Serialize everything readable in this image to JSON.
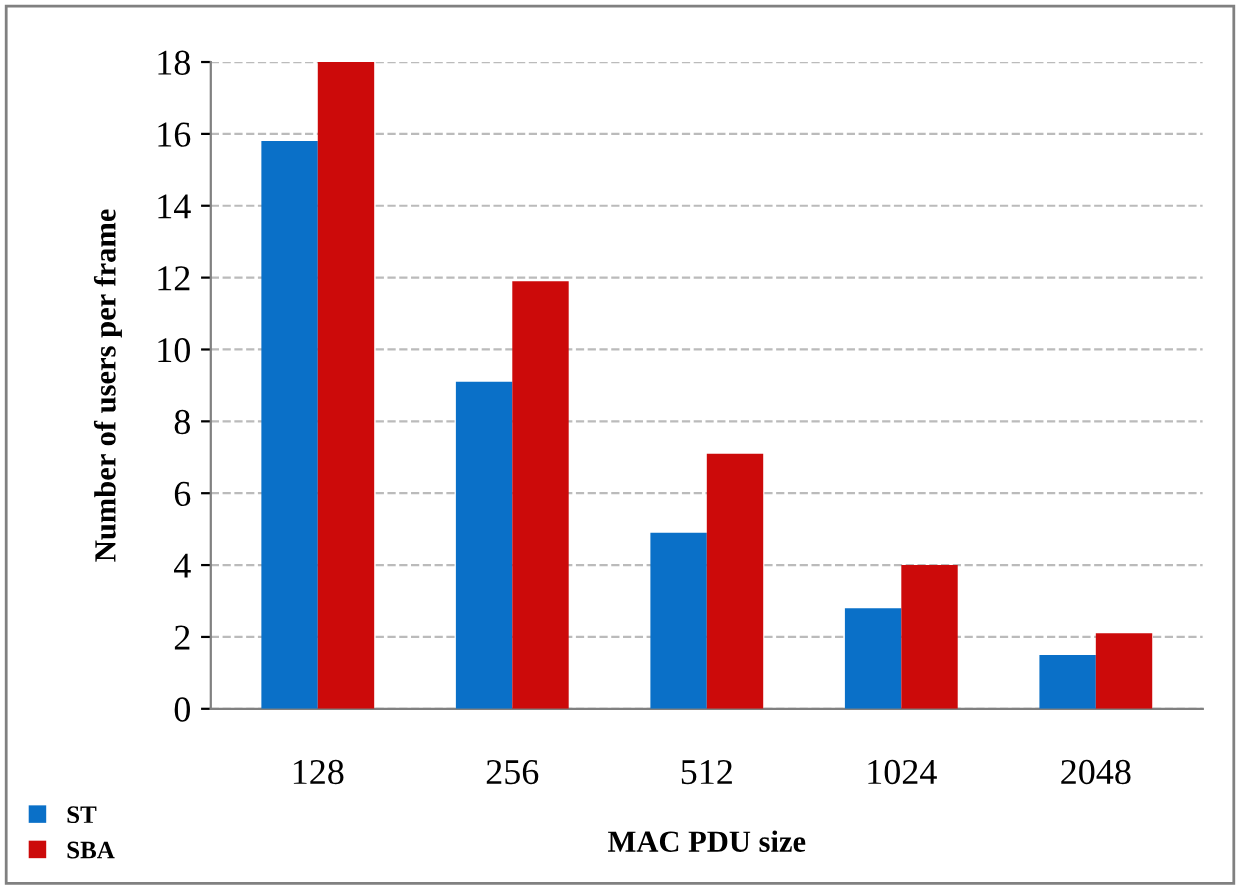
{
  "chart_data": {
    "type": "bar",
    "xlabel": "MAC PDU size",
    "ylabel": "Number of users per frame",
    "categories": [
      "128",
      "256",
      "512",
      "1024",
      "2048"
    ],
    "series": [
      {
        "name": "ST",
        "color": "#0a70c8",
        "values": [
          15.8,
          9.1,
          4.9,
          2.8,
          1.5
        ]
      },
      {
        "name": "SBA",
        "color": "#cc0a0a",
        "values": [
          18,
          11.9,
          7.1,
          4.0,
          2.1
        ]
      }
    ],
    "ylim": [
      0,
      18
    ],
    "yticks": [
      0,
      2,
      4,
      6,
      8,
      10,
      12,
      14,
      16,
      18
    ],
    "grid": "y",
    "legend": "bottom left"
  }
}
